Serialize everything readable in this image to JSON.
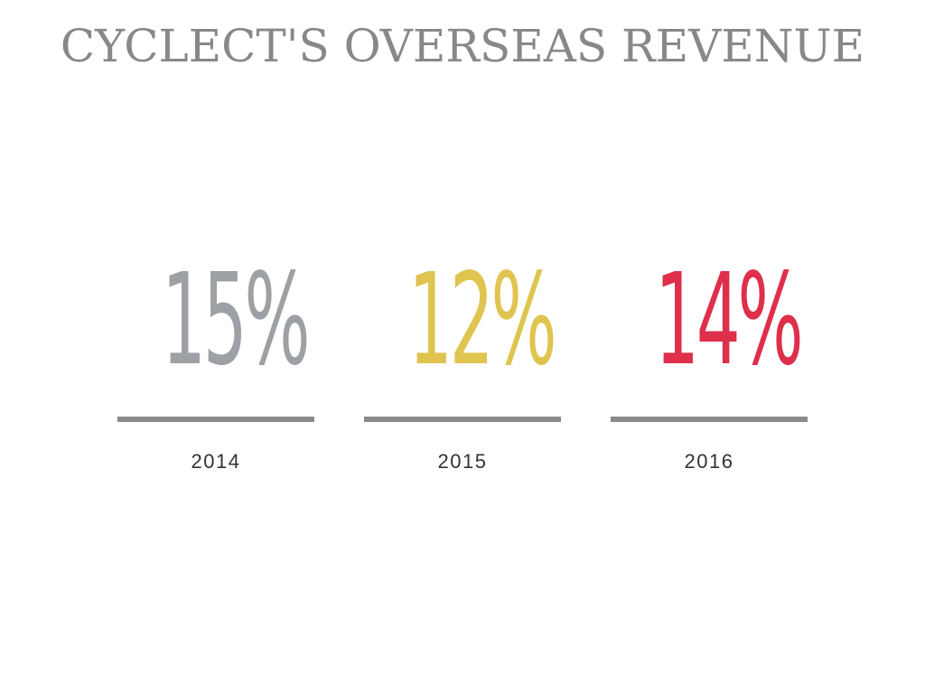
{
  "title": "CYCLECT'S OVERSEAS REVENUE",
  "colors": {
    "title": "#888888",
    "rule": "#8a8a8a",
    "year_text": "#333333"
  },
  "chart_data": {
    "type": "table",
    "title": "CYCLECT'S OVERSEAS REVENUE",
    "unit": "%",
    "categories": [
      "2014",
      "2015",
      "2016"
    ],
    "values": [
      15,
      12,
      14
    ],
    "items": [
      {
        "year": "2014",
        "value": 15,
        "label": "15%",
        "color": "#9da0a4"
      },
      {
        "year": "2015",
        "value": 12,
        "label": "12%",
        "color": "#dfc44f"
      },
      {
        "year": "2016",
        "value": 14,
        "label": "14%",
        "color": "#de2f4b"
      }
    ]
  }
}
